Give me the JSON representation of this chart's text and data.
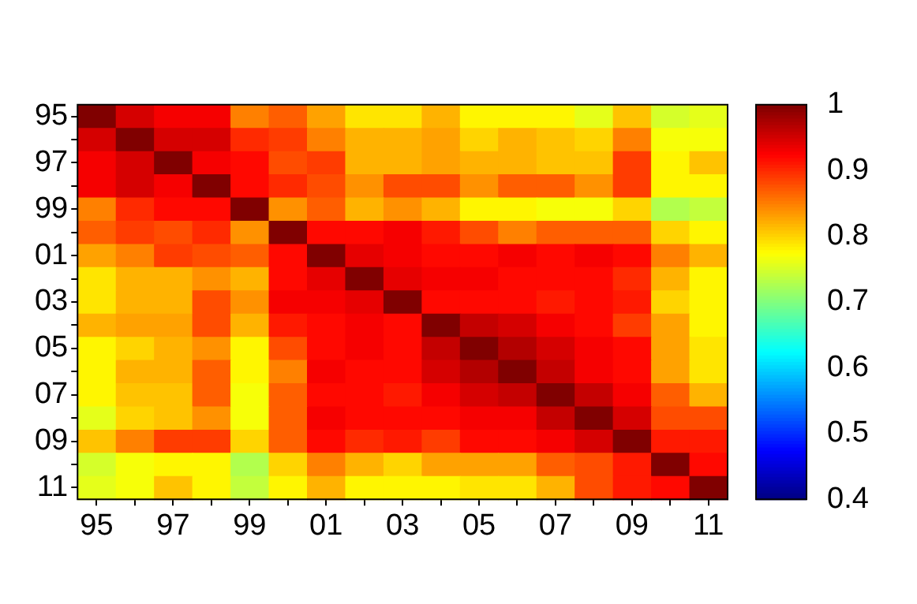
{
  "chart_data": {
    "type": "heatmap",
    "categories": [
      "95",
      null,
      "97",
      null,
      "99",
      null,
      "01",
      null,
      "03",
      null,
      "05",
      null,
      "07",
      null,
      "09",
      null,
      "11"
    ],
    "y_categories": [
      "95",
      null,
      "97",
      null,
      "99",
      null,
      "01",
      null,
      "03",
      null,
      "05",
      null,
      "07",
      null,
      "09",
      null,
      "11"
    ],
    "cells": [
      [
        1,
        0.95,
        0.93,
        0.93,
        0.85,
        0.87,
        0.83,
        0.79,
        0.79,
        0.82,
        0.78,
        0.78,
        0.78,
        0.76,
        0.81,
        0.75,
        0.76
      ],
      [
        0.95,
        1,
        0.95,
        0.95,
        0.9,
        0.89,
        0.85,
        0.82,
        0.82,
        0.83,
        0.8,
        0.82,
        0.81,
        0.8,
        0.85,
        0.77,
        0.77
      ],
      [
        0.93,
        0.95,
        1,
        0.93,
        0.92,
        0.88,
        0.89,
        0.82,
        0.82,
        0.83,
        0.82,
        0.82,
        0.81,
        0.81,
        0.89,
        0.78,
        0.81
      ],
      [
        0.93,
        0.95,
        0.93,
        1,
        0.92,
        0.9,
        0.88,
        0.84,
        0.88,
        0.88,
        0.84,
        0.87,
        0.87,
        0.84,
        0.89,
        0.78,
        0.78
      ],
      [
        0.85,
        0.9,
        0.92,
        0.92,
        1,
        0.84,
        0.87,
        0.82,
        0.84,
        0.82,
        0.78,
        0.78,
        0.77,
        0.77,
        0.8,
        0.73,
        0.74
      ],
      [
        0.87,
        0.89,
        0.88,
        0.9,
        0.84,
        1,
        0.92,
        0.92,
        0.93,
        0.91,
        0.88,
        0.85,
        0.87,
        0.87,
        0.87,
        0.8,
        0.78
      ],
      [
        0.83,
        0.85,
        0.89,
        0.88,
        0.87,
        0.92,
        1,
        0.94,
        0.93,
        0.92,
        0.92,
        0.93,
        0.92,
        0.93,
        0.92,
        0.85,
        0.82
      ],
      [
        0.79,
        0.82,
        0.82,
        0.84,
        0.82,
        0.92,
        0.94,
        1,
        0.94,
        0.93,
        0.93,
        0.92,
        0.92,
        0.92,
        0.9,
        0.82,
        0.78
      ],
      [
        0.79,
        0.82,
        0.82,
        0.88,
        0.84,
        0.93,
        0.93,
        0.94,
        1,
        0.92,
        0.92,
        0.92,
        0.91,
        0.92,
        0.91,
        0.8,
        0.78
      ],
      [
        0.82,
        0.83,
        0.83,
        0.88,
        0.82,
        0.91,
        0.92,
        0.93,
        0.92,
        1,
        0.96,
        0.95,
        0.93,
        0.92,
        0.89,
        0.83,
        0.78
      ],
      [
        0.78,
        0.8,
        0.82,
        0.84,
        0.78,
        0.88,
        0.92,
        0.93,
        0.92,
        0.96,
        1,
        0.97,
        0.95,
        0.93,
        0.92,
        0.83,
        0.79
      ],
      [
        0.78,
        0.82,
        0.82,
        0.87,
        0.78,
        0.85,
        0.93,
        0.92,
        0.92,
        0.95,
        0.97,
        1,
        0.96,
        0.93,
        0.92,
        0.83,
        0.79
      ],
      [
        0.78,
        0.81,
        0.81,
        0.87,
        0.77,
        0.87,
        0.92,
        0.92,
        0.91,
        0.93,
        0.95,
        0.96,
        1,
        0.96,
        0.93,
        0.87,
        0.82
      ],
      [
        0.76,
        0.8,
        0.81,
        0.84,
        0.77,
        0.87,
        0.93,
        0.92,
        0.92,
        0.92,
        0.93,
        0.93,
        0.96,
        1,
        0.95,
        0.88,
        0.88
      ],
      [
        0.81,
        0.85,
        0.89,
        0.89,
        0.8,
        0.87,
        0.92,
        0.9,
        0.91,
        0.89,
        0.92,
        0.92,
        0.93,
        0.95,
        1,
        0.91,
        0.91
      ],
      [
        0.75,
        0.77,
        0.78,
        0.78,
        0.73,
        0.8,
        0.85,
        0.82,
        0.8,
        0.83,
        0.83,
        0.83,
        0.87,
        0.88,
        0.91,
        1,
        0.92
      ],
      [
        0.76,
        0.77,
        0.81,
        0.78,
        0.74,
        0.78,
        0.82,
        0.78,
        0.78,
        0.78,
        0.79,
        0.79,
        0.82,
        0.88,
        0.91,
        0.92,
        1
      ]
    ],
    "clim": [
      0.4,
      1
    ],
    "cticks": [
      0.4,
      0.5,
      0.6,
      0.7,
      0.8,
      0.9,
      1
    ]
  }
}
